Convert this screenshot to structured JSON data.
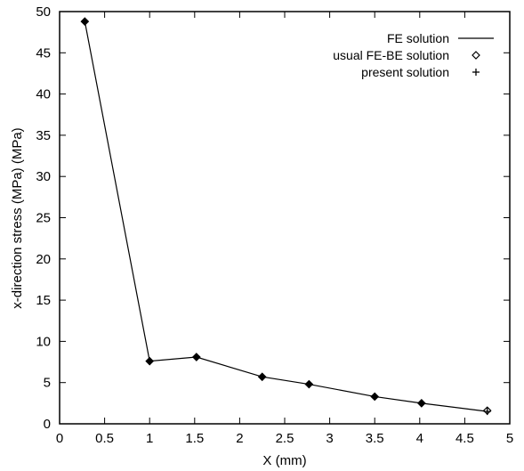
{
  "chart_data": {
    "type": "line",
    "title": "",
    "xlabel": "X (mm)",
    "ylabel": "x-direction stress (MPa) (MPa)",
    "xlim": [
      0,
      5
    ],
    "ylim": [
      0,
      50
    ],
    "x_ticks": [
      "0",
      "0.5",
      "1",
      "1.5",
      "2",
      "2.5",
      "3",
      "3.5",
      "4",
      "4.5",
      "5"
    ],
    "y_ticks": [
      "0",
      "5",
      "10",
      "15",
      "20",
      "25",
      "30",
      "35",
      "40",
      "45",
      "50"
    ],
    "grid": false,
    "legend_position": "top-right",
    "series": [
      {
        "name": "FE solution",
        "style": "line",
        "x": [
          0.28,
          1.0,
          1.52,
          2.25,
          2.77,
          3.5,
          4.02,
          4.75
        ],
        "y": [
          48.8,
          7.6,
          8.1,
          5.7,
          4.8,
          3.3,
          2.5,
          1.5
        ]
      },
      {
        "name": "usual FE-BE solution",
        "style": "diamond",
        "x": [
          0.28,
          1.0,
          1.52,
          2.25,
          2.77,
          3.5,
          4.02,
          4.75
        ],
        "y": [
          48.8,
          7.6,
          8.1,
          5.7,
          4.8,
          3.3,
          2.5,
          1.6
        ]
      },
      {
        "name": "present solution",
        "style": "plus",
        "x": [
          0.28,
          1.0,
          1.52,
          2.25,
          2.77,
          3.5,
          4.02,
          4.75
        ],
        "y": [
          48.8,
          7.6,
          8.1,
          5.7,
          4.8,
          3.3,
          2.5,
          1.5
        ]
      }
    ]
  }
}
